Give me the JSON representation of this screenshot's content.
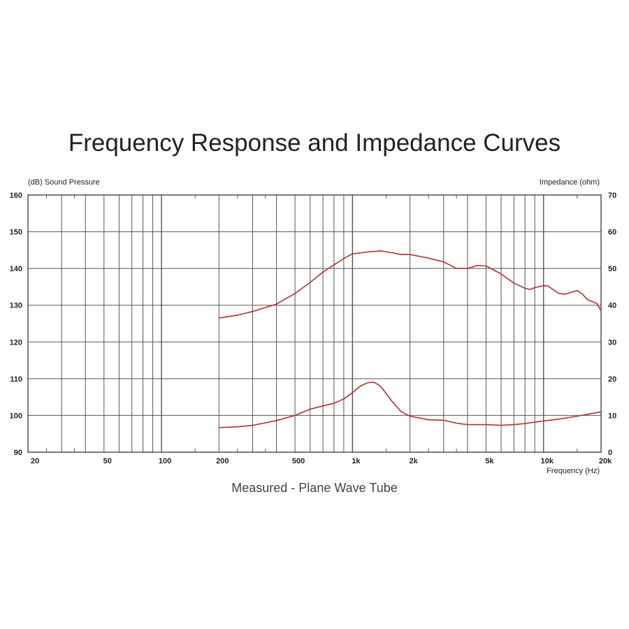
{
  "chart_data": {
    "type": "line",
    "title": "Frequency Response and Impedance Curves",
    "subtitle": "Measured - Plane Wave Tube",
    "xlabel": "Frequency  (Hz)",
    "ylabel_left": "(dB)  Sound Pressure",
    "ylabel_right": "Impedance  (ohm)",
    "x_scale": "log",
    "xlim": [
      20,
      20000
    ],
    "ylim_left": [
      90,
      160
    ],
    "ylim_right": [
      0,
      70
    ],
    "grid": true,
    "x_ticks": [
      {
        "v": 20,
        "label": "20"
      },
      {
        "v": 50,
        "label": "50"
      },
      {
        "v": 100,
        "label": "100"
      },
      {
        "v": 200,
        "label": "200"
      },
      {
        "v": 500,
        "label": "500"
      },
      {
        "v": 1000,
        "label": "1k"
      },
      {
        "v": 2000,
        "label": "2k"
      },
      {
        "v": 5000,
        "label": "5k"
      },
      {
        "v": 10000,
        "label": "10k"
      },
      {
        "v": 20000,
        "label": "20k"
      }
    ],
    "y_ticks_left": [
      "90",
      "100",
      "110",
      "120",
      "130",
      "140",
      "150",
      "160"
    ],
    "y_ticks_right": [
      "0",
      "10",
      "20",
      "30",
      "40",
      "50",
      "60",
      "70"
    ],
    "line_color": "#b03030",
    "grid_color": "#555555",
    "series": [
      {
        "axis": "left",
        "x": [
          200,
          250,
          300,
          400,
          500,
          600,
          700,
          800,
          900,
          1000,
          1200,
          1400,
          1600,
          1800,
          2000,
          2500,
          3000,
          3500,
          4000,
          4500,
          5000,
          6000,
          7000,
          8000,
          8500,
          9000,
          10000,
          10500,
          12000,
          13000,
          15000,
          16000,
          17000,
          19000,
          20000
        ],
        "y": [
          126.5,
          127.3,
          128.3,
          130.3,
          133.2,
          136.2,
          139,
          141,
          142.7,
          144,
          144.5,
          144.8,
          144.3,
          143.8,
          143.8,
          142.8,
          141.8,
          140,
          140,
          140.8,
          140.7,
          138.5,
          136,
          134.6,
          134.3,
          134.8,
          135.3,
          135.3,
          133.2,
          133,
          134,
          133,
          131.5,
          130.5,
          128.5
        ]
      },
      {
        "axis": "right",
        "x": [
          200,
          250,
          300,
          400,
          500,
          600,
          700,
          800,
          900,
          1000,
          1100,
          1200,
          1300,
          1400,
          1600,
          1800,
          2000,
          2500,
          3000,
          3500,
          4000,
          5000,
          6000,
          7000,
          8000,
          10000,
          12000,
          15000,
          20000
        ],
        "y": [
          6.7,
          6.9,
          7.3,
          8.6,
          10,
          11.7,
          12.6,
          13.3,
          14.5,
          16.2,
          18,
          18.9,
          19,
          18,
          14,
          11,
          9.8,
          8.8,
          8.7,
          7.9,
          7.5,
          7.5,
          7.3,
          7.5,
          7.8,
          8.5,
          9,
          9.8,
          11
        ]
      }
    ]
  }
}
